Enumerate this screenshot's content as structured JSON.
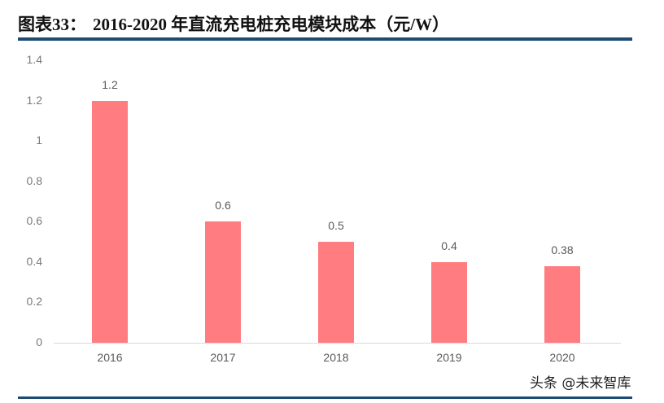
{
  "header": {
    "figure_label": "图表33：",
    "title": "2016-2020 年直流充电桩充电模块成本（元/W）"
  },
  "watermark": "头条 @未来智库",
  "colors": {
    "bar": "#ff7c80",
    "rule": "#1e4b72",
    "axis": "#d9d9d9",
    "tick_text": "#7a7a7a"
  },
  "chart_data": {
    "type": "bar",
    "title": "2016-2020 年直流充电桩充电模块成本（元/W）",
    "xlabel": "",
    "ylabel": "",
    "categories": [
      "2016",
      "2017",
      "2018",
      "2019",
      "2020"
    ],
    "values": [
      1.2,
      0.6,
      0.5,
      0.4,
      0.38
    ],
    "data_labels": [
      "1.2",
      "0.6",
      "0.5",
      "0.4",
      "0.38"
    ],
    "ylim": [
      0,
      1.4
    ],
    "yticks": [
      "0",
      "0.2",
      "0.4",
      "0.6",
      "0.8",
      "1",
      "1.2",
      "1.4"
    ],
    "grid": false,
    "legend": "none"
  }
}
